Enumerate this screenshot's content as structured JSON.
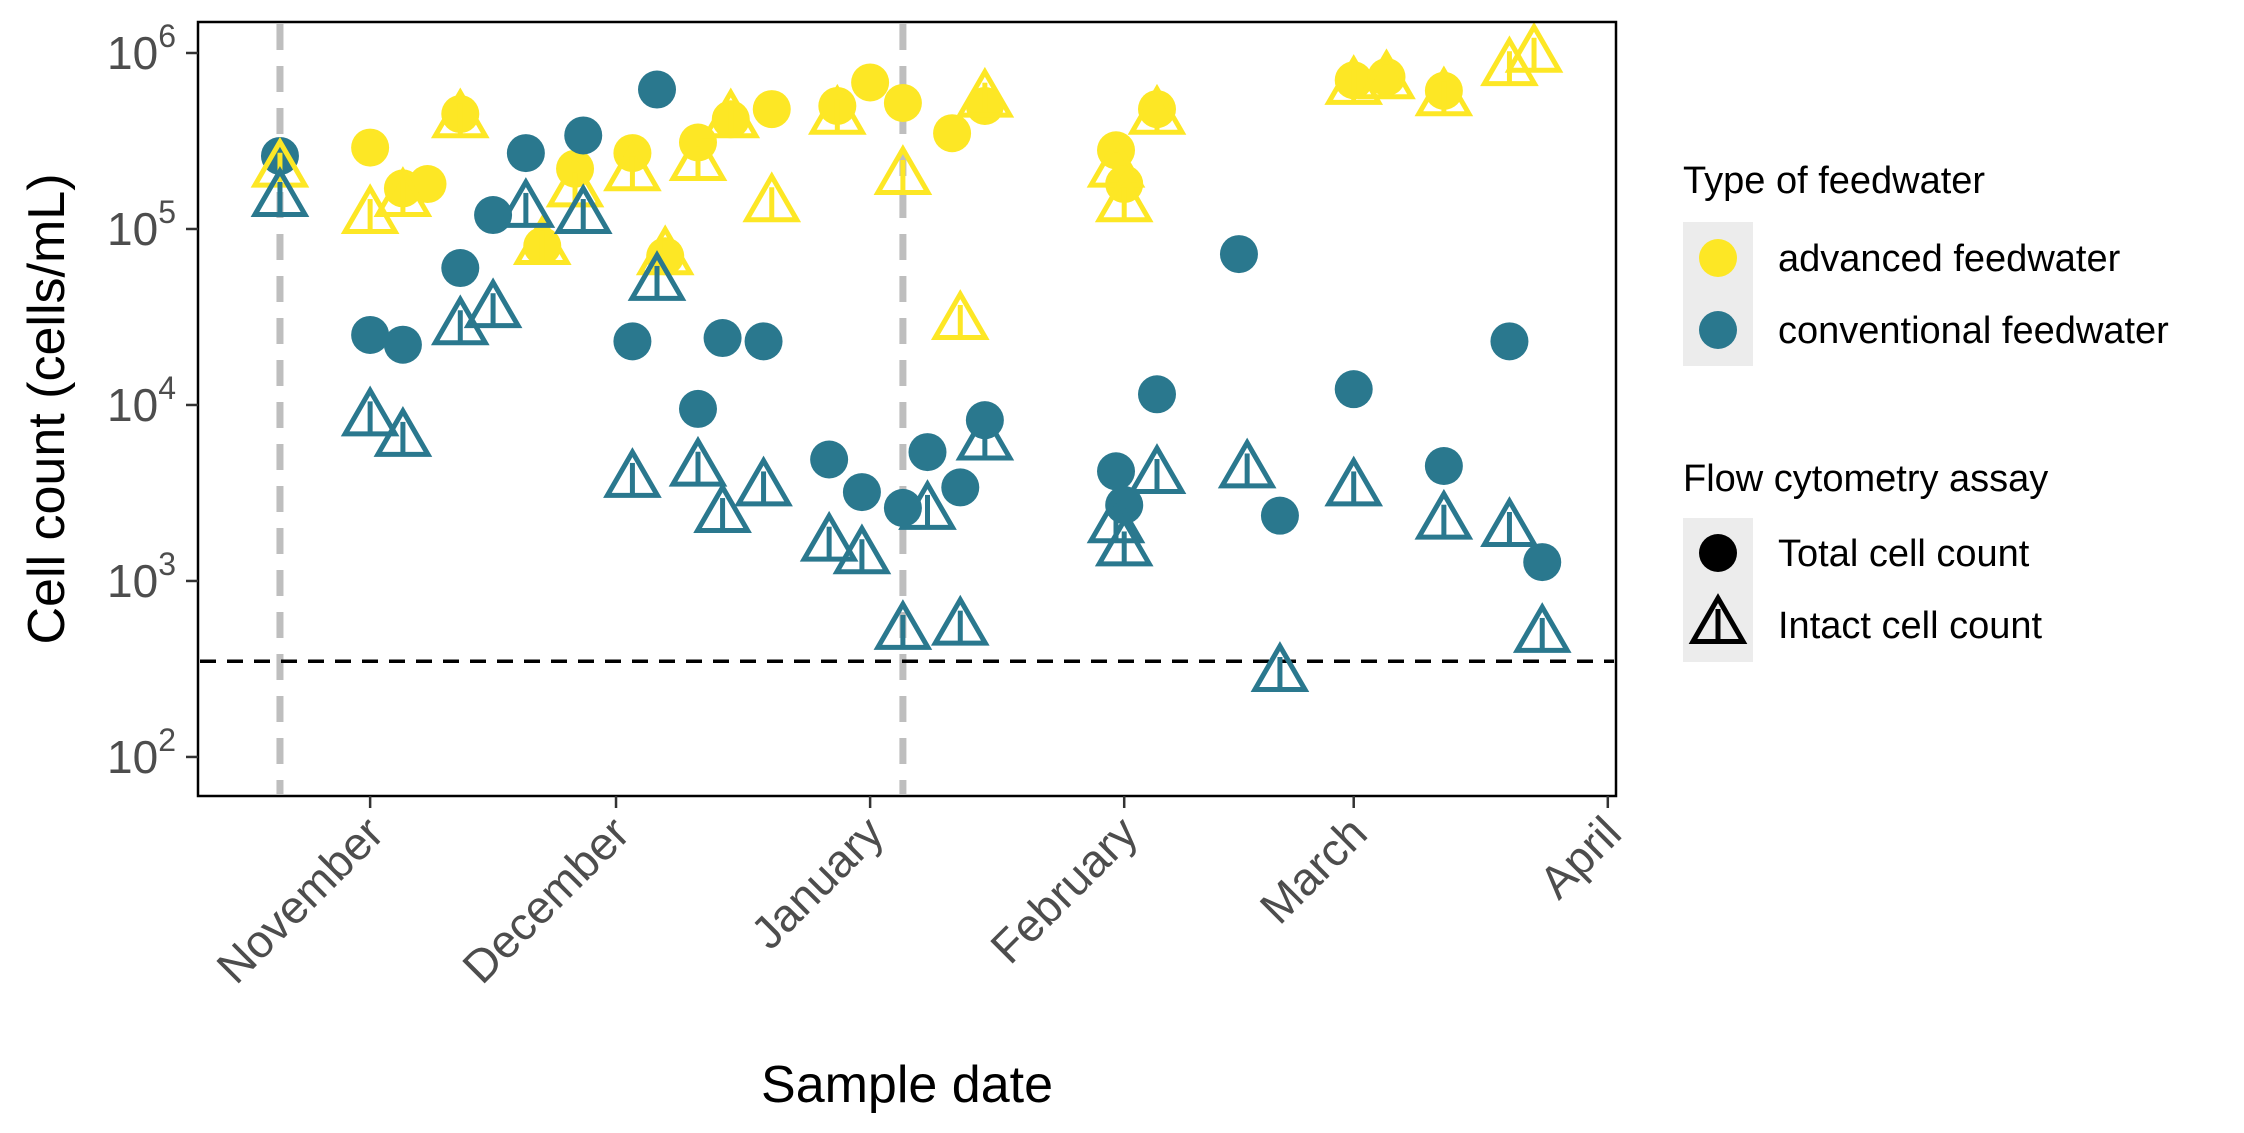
{
  "chart_data": {
    "type": "scatter",
    "xlabel": "Sample date",
    "ylabel": "Cell count (cells/mL)",
    "y_scale": "log10",
    "ylim": [
      60,
      1500000
    ],
    "xlim": [
      "2021-10-11",
      "2022-04-02"
    ],
    "y_tick_labels": [
      {
        "value": 100,
        "base": "10",
        "exp": "2"
      },
      {
        "value": 1000,
        "base": "10",
        "exp": "3"
      },
      {
        "value": 10000,
        "base": "10",
        "exp": "4"
      },
      {
        "value": 100000,
        "base": "10",
        "exp": "5"
      },
      {
        "value": 1000000,
        "base": "10",
        "exp": "6"
      }
    ],
    "x_tick_labels": [
      {
        "date": "2021-11-01",
        "label": "November"
      },
      {
        "date": "2021-12-01",
        "label": "December"
      },
      {
        "date": "2022-01-01",
        "label": "January"
      },
      {
        "date": "2022-02-01",
        "label": "February"
      },
      {
        "date": "2022-03-01",
        "label": "March"
      },
      {
        "date": "2022-04-01",
        "label": "April"
      }
    ],
    "vlines": [
      "2021-10-21",
      "2022-01-05"
    ],
    "hline": 350,
    "grid": false,
    "legend_position": "right",
    "legends": [
      {
        "title": "Type of feedwater",
        "entries": [
          {
            "label": "advanced feedwater",
            "color": "#FDE725",
            "shape": "circle"
          },
          {
            "label": "conventional feedwater",
            "color": "#2A788E",
            "shape": "circle"
          }
        ]
      },
      {
        "title": "Flow cytometry assay",
        "entries": [
          {
            "label": "Total cell count",
            "color": "#000000",
            "shape": "circle"
          },
          {
            "label": "Intact cell count",
            "color": "#000000",
            "shape": "triangle"
          }
        ]
      }
    ],
    "series": [
      {
        "feedwater": "advanced",
        "assay": "total",
        "color": "#FDE725",
        "shape": "circle",
        "points": [
          {
            "x": "2021-11-01",
            "y": 290000
          },
          {
            "x": "2021-11-05",
            "y": 170000
          },
          {
            "x": "2021-11-08",
            "y": 180000
          },
          {
            "x": "2021-11-12",
            "y": 450000
          },
          {
            "x": "2021-11-26",
            "y": 220000
          },
          {
            "x": "2021-11-22",
            "y": 80000
          },
          {
            "x": "2021-12-03",
            "y": 270000
          },
          {
            "x": "2021-12-07",
            "y": 70000
          },
          {
            "x": "2021-12-11",
            "y": 310000
          },
          {
            "x": "2021-12-15",
            "y": 420000
          },
          {
            "x": "2021-12-20",
            "y": 480000
          },
          {
            "x": "2021-12-28",
            "y": 500000
          },
          {
            "x": "2022-01-01",
            "y": 680000
          },
          {
            "x": "2022-01-05",
            "y": 520000
          },
          {
            "x": "2022-01-11",
            "y": 350000
          },
          {
            "x": "2022-01-15",
            "y": 500000
          },
          {
            "x": "2022-01-31",
            "y": 280000
          },
          {
            "x": "2022-02-01",
            "y": 180000
          },
          {
            "x": "2022-02-05",
            "y": 480000
          },
          {
            "x": "2022-03-01",
            "y": 700000
          },
          {
            "x": "2022-03-05",
            "y": 730000
          },
          {
            "x": "2022-03-12",
            "y": 610000
          }
        ]
      },
      {
        "feedwater": "advanced",
        "assay": "intact",
        "color": "#FDE725",
        "shape": "triangle",
        "points": [
          {
            "x": "2021-10-21",
            "y": 220000
          },
          {
            "x": "2021-11-01",
            "y": 120000
          },
          {
            "x": "2021-11-05",
            "y": 150000
          },
          {
            "x": "2021-11-12",
            "y": 420000
          },
          {
            "x": "2021-11-22",
            "y": 80000
          },
          {
            "x": "2021-11-26",
            "y": 170000
          },
          {
            "x": "2021-12-03",
            "y": 210000
          },
          {
            "x": "2021-12-07",
            "y": 70000
          },
          {
            "x": "2021-12-11",
            "y": 240000
          },
          {
            "x": "2021-12-15",
            "y": 420000
          },
          {
            "x": "2021-12-20",
            "y": 140000
          },
          {
            "x": "2021-12-28",
            "y": 440000
          },
          {
            "x": "2022-01-05",
            "y": 200000
          },
          {
            "x": "2022-01-12",
            "y": 30000
          },
          {
            "x": "2022-01-15",
            "y": 550000
          },
          {
            "x": "2022-01-31",
            "y": 220000
          },
          {
            "x": "2022-02-01",
            "y": 140000
          },
          {
            "x": "2022-02-05",
            "y": 440000
          },
          {
            "x": "2022-03-01",
            "y": 650000
          },
          {
            "x": "2022-03-05",
            "y": 700000
          },
          {
            "x": "2022-03-12",
            "y": 560000
          },
          {
            "x": "2022-03-20",
            "y": 830000
          },
          {
            "x": "2022-03-23",
            "y": 990000
          }
        ]
      },
      {
        "feedwater": "conventional",
        "assay": "total",
        "color": "#2A788E",
        "shape": "circle",
        "points": [
          {
            "x": "2021-10-21",
            "y": 260000
          },
          {
            "x": "2021-11-01",
            "y": 25000
          },
          {
            "x": "2021-11-05",
            "y": 22000
          },
          {
            "x": "2021-11-12",
            "y": 60000
          },
          {
            "x": "2021-11-16",
            "y": 120000
          },
          {
            "x": "2021-11-20",
            "y": 270000
          },
          {
            "x": "2021-11-27",
            "y": 340000
          },
          {
            "x": "2021-12-03",
            "y": 23000
          },
          {
            "x": "2021-12-06",
            "y": 620000
          },
          {
            "x": "2021-12-11",
            "y": 9500
          },
          {
            "x": "2021-12-14",
            "y": 24000
          },
          {
            "x": "2021-12-19",
            "y": 23000
          },
          {
            "x": "2021-12-27",
            "y": 4900
          },
          {
            "x": "2021-12-31",
            "y": 3200
          },
          {
            "x": "2022-01-05",
            "y": 2600
          },
          {
            "x": "2022-01-08",
            "y": 5400
          },
          {
            "x": "2022-01-12",
            "y": 3400
          },
          {
            "x": "2022-01-15",
            "y": 8200
          },
          {
            "x": "2022-01-31",
            "y": 4200
          },
          {
            "x": "2022-02-01",
            "y": 2700
          },
          {
            "x": "2022-02-05",
            "y": 11500
          },
          {
            "x": "2022-02-15",
            "y": 72000
          },
          {
            "x": "2022-02-20",
            "y": 2350
          },
          {
            "x": "2022-03-01",
            "y": 12300
          },
          {
            "x": "2022-03-12",
            "y": 4500
          },
          {
            "x": "2022-03-20",
            "y": 23000
          },
          {
            "x": "2022-03-24",
            "y": 1280
          }
        ]
      },
      {
        "feedwater": "conventional",
        "assay": "intact",
        "color": "#2A788E",
        "shape": "triangle",
        "points": [
          {
            "x": "2021-10-21",
            "y": 150000
          },
          {
            "x": "2021-11-01",
            "y": 8500
          },
          {
            "x": "2021-11-05",
            "y": 6500
          },
          {
            "x": "2021-11-12",
            "y": 28000
          },
          {
            "x": "2021-11-16",
            "y": 35000
          },
          {
            "x": "2021-11-20",
            "y": 130000
          },
          {
            "x": "2021-11-27",
            "y": 120000
          },
          {
            "x": "2021-12-03",
            "y": 3800
          },
          {
            "x": "2021-12-06",
            "y": 50000
          },
          {
            "x": "2021-12-11",
            "y": 4400
          },
          {
            "x": "2021-12-14",
            "y": 2400
          },
          {
            "x": "2021-12-19",
            "y": 3400
          },
          {
            "x": "2021-12-27",
            "y": 1650
          },
          {
            "x": "2021-12-31",
            "y": 1400
          },
          {
            "x": "2022-01-05",
            "y": 520
          },
          {
            "x": "2022-01-08",
            "y": 2500
          },
          {
            "x": "2022-01-12",
            "y": 550
          },
          {
            "x": "2022-01-15",
            "y": 6200
          },
          {
            "x": "2022-01-31",
            "y": 2100
          },
          {
            "x": "2022-02-01",
            "y": 1550
          },
          {
            "x": "2022-02-05",
            "y": 4000
          },
          {
            "x": "2022-02-16",
            "y": 4300
          },
          {
            "x": "2022-02-20",
            "y": 300
          },
          {
            "x": "2022-03-01",
            "y": 3400
          },
          {
            "x": "2022-03-12",
            "y": 2200
          },
          {
            "x": "2022-03-20",
            "y": 2000
          },
          {
            "x": "2022-03-24",
            "y": 500
          }
        ]
      }
    ]
  }
}
